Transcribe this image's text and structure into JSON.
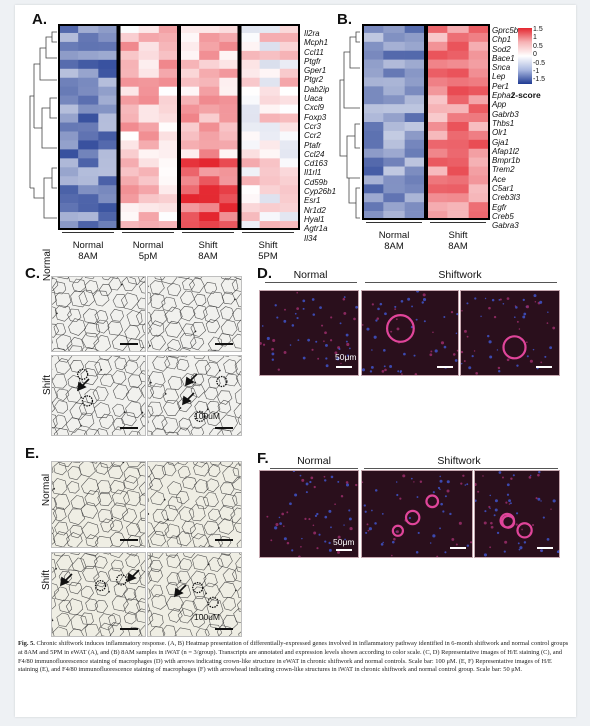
{
  "panel_a": {
    "label": "A.",
    "genes": [
      "Il2ra",
      "Mcph1",
      "Ccl11",
      "Ptgfr",
      "Gper1",
      "Ptgr2",
      "Dab2ip",
      "Uaca",
      "Cxcl9",
      "Foxp3",
      "Ccr3",
      "Ccr2",
      "Ptafr",
      "Ccl24",
      "Cd163",
      "Il1rl1",
      "Cd59b",
      "Cyp26b1",
      "Esr1",
      "Nr1d2",
      "Hyal1",
      "Agtr1a",
      "Il34"
    ],
    "groups": [
      {
        "line1": "Normal",
        "line2": "8AM"
      },
      {
        "line1": "Normal",
        "line2": "5pM"
      },
      {
        "line1": "Shift",
        "line2": "8AM"
      },
      {
        "line1": "Shift",
        "line2": "5PM"
      }
    ]
  },
  "panel_b": {
    "label": "B.",
    "genes": [
      "Gprc5b",
      "Chp1",
      "Sod2",
      "Bace1",
      "Snca",
      "Lep",
      "Per1",
      "Epha2",
      "App",
      "Gabrb3",
      "Thbs1",
      "Olr1",
      "Gja1",
      "Afap1l2",
      "Bmpr1b",
      "Trem2",
      "Ace",
      "C5ar1",
      "Creb3l3",
      "Egfr",
      "Creb5",
      "Gabra3"
    ],
    "groups": [
      {
        "line1": "Normal",
        "line2": "8AM"
      },
      {
        "line1": "Shift",
        "line2": "8AM"
      }
    ]
  },
  "zscore_legend": {
    "ticks": [
      "1.5",
      "1",
      "0.5",
      "0",
      "-0.5",
      "-1",
      "-1.5"
    ],
    "title": "z-score",
    "colors": {
      "high": "#e4262f",
      "mid": "#ffffff",
      "low": "#1f3b93"
    }
  },
  "panel_c": {
    "label": "C.",
    "row_normal": "Normal",
    "row_shift": "Shift",
    "scale": "100uM"
  },
  "panel_d": {
    "label": "D.",
    "normal": "Normal",
    "shiftwork": "Shiftwork",
    "scale": "50μm"
  },
  "panel_e": {
    "label": "E.",
    "row_normal": "Normal",
    "row_shift": "Shift",
    "scale": "100uM"
  },
  "panel_f": {
    "label": "F.",
    "normal": "Normal",
    "shiftwork": "Shiftwork",
    "scale": "50μm"
  },
  "caption": {
    "head": "Fig. 5.",
    "body": "Chronic shiftwork induces inflammatory response. (A, B) Heatmap presentation of differentially-expressed genes involved in inflammatory pathway identified in 6-month shiftwork and normal control groups at 8AM and 5PM in eWAT (A), and (B) 8AM samples in iWAT (n = 3/group). Transcripts are annotated and expression levels shown according to color scale. (C, D) Representative images of H/E staining (C), and F4/80 immunofluorescence staining of macrophages (D) with arrows indicating crown-like structure in eWAT in chronic shiftwork and normal controls. Scale bar: 100 μM. (E, F) Representative images of H/E staining (E), and F4/80 immunofluorescence staining of macrophages (F) with arrowhead indicating crown-like structures in iWAT in chronic shiftwork and normal control group. Scale bar: 50 μM."
  }
}
